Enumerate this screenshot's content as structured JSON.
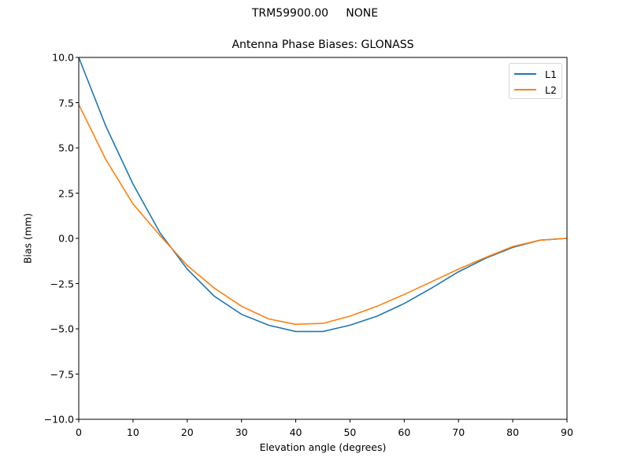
{
  "figure": {
    "suptitle": "TRM59900.00     NONE",
    "title": "Antenna Phase Biases: GLONASS",
    "xlabel": "Elevation angle (degrees)",
    "ylabel": "Bias (mm)"
  },
  "axes": {
    "yticks": [
      "10.0",
      "7.5",
      "5.0",
      "2.5",
      "0.0",
      "−2.5",
      "−5.0",
      "−7.5",
      "−10.0"
    ],
    "xticks": [
      "0",
      "10",
      "20",
      "30",
      "40",
      "50",
      "60",
      "70",
      "80",
      "90"
    ]
  },
  "legend": {
    "items": [
      {
        "label": "L1",
        "color": "#1f77b4"
      },
      {
        "label": "L2",
        "color": "#ff7f0e"
      }
    ]
  },
  "chart_data": {
    "type": "line",
    "title": "Antenna Phase Biases: GLONASS",
    "suptitle": "TRM59900.00     NONE",
    "xlabel": "Elevation angle (degrees)",
    "ylabel": "Bias (mm)",
    "xlim": [
      0,
      90
    ],
    "ylim": [
      -10,
      10
    ],
    "grid": false,
    "legend_position": "upper right",
    "x": [
      0,
      5,
      10,
      15,
      20,
      25,
      30,
      35,
      40,
      45,
      50,
      55,
      60,
      65,
      70,
      75,
      80,
      85,
      90
    ],
    "series": [
      {
        "name": "L1",
        "color": "#1f77b4",
        "values": [
          10.0,
          6.2,
          3.0,
          0.3,
          -1.7,
          -3.2,
          -4.2,
          -4.8,
          -5.15,
          -5.15,
          -4.8,
          -4.3,
          -3.6,
          -2.75,
          -1.85,
          -1.1,
          -0.5,
          -0.1,
          0.0
        ]
      },
      {
        "name": "L2",
        "color": "#ff7f0e",
        "values": [
          7.4,
          4.35,
          1.9,
          0.15,
          -1.5,
          -2.75,
          -3.75,
          -4.45,
          -4.75,
          -4.7,
          -4.3,
          -3.75,
          -3.1,
          -2.4,
          -1.7,
          -1.05,
          -0.45,
          -0.1,
          0.0
        ]
      }
    ]
  }
}
